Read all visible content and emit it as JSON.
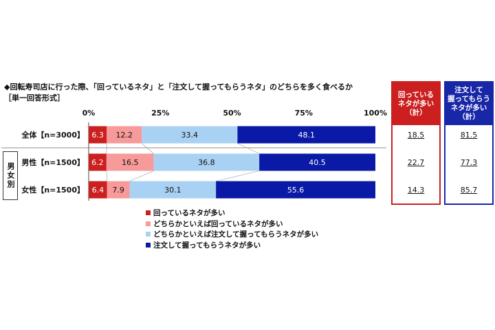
{
  "title": "◆回転寿司店に行った際、「回っているネタ」と「注文して握ってもらうネタ」のどちらを多く食べるか",
  "subtitle": "［単一回答形式］",
  "gender_group_label": "男女別",
  "colors": {
    "series": [
      "#cc1f1f",
      "#f79a9a",
      "#a9d1f3",
      "#0a1aa6"
    ],
    "box_red": "#cc1f1f",
    "box_blue": "#1826a8"
  },
  "summary_headers": [
    "回っている\nネタが多い\n（計）",
    "注文して\n握ってもらう\nネタが多い\n（計）"
  ],
  "chart_data": {
    "type": "bar",
    "orientation": "horizontal",
    "stacked": true,
    "percent_scale": true,
    "xlim": [
      0,
      100
    ],
    "xticks": [
      "0%",
      "25%",
      "50%",
      "75%",
      "100%"
    ],
    "categories": [
      "全体【n=3000】",
      "男性【n=1500】",
      "女性【n=1500】"
    ],
    "series": [
      {
        "name": "回っているネタが多い",
        "values": [
          6.3,
          6.2,
          6.4
        ]
      },
      {
        "name": "どちらかといえば回っているネタが多い",
        "values": [
          12.2,
          16.5,
          7.9
        ]
      },
      {
        "name": "どちらかといえば注文して握ってもらうネタが多い",
        "values": [
          33.4,
          36.8,
          30.1
        ]
      },
      {
        "name": "注文して握ってもらうネタが多い",
        "values": [
          48.1,
          40.5,
          55.6
        ]
      }
    ],
    "summary": {
      "mawatteiru_total": [
        "18.5",
        "22.7",
        "14.3"
      ],
      "chumon_total": [
        "81.5",
        "77.3",
        "85.7"
      ]
    },
    "legend_position": "bottom"
  }
}
